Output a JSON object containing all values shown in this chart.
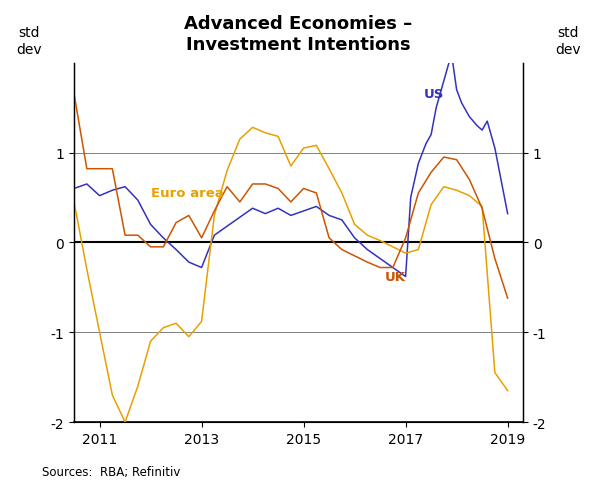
{
  "title": "Advanced Economies –\nInvestment Intentions",
  "ylabel_left": "std\ndev",
  "ylabel_right": "std\ndev",
  "source": "Sources:  RBA; Refinitiv",
  "ylim": [
    -2,
    2
  ],
  "yticks": [
    -2,
    -1,
    0,
    1
  ],
  "xlim": [
    2010.5,
    2019.3
  ],
  "xticks": [
    2011,
    2013,
    2015,
    2017,
    2019
  ],
  "colors": {
    "US": "#3333bb",
    "Euro_area": "#e8a000",
    "UK": "#cc5500"
  },
  "US": {
    "x": [
      2010.5,
      2010.75,
      2011.0,
      2011.25,
      2011.5,
      2011.75,
      2012.0,
      2012.25,
      2012.5,
      2012.75,
      2013.0,
      2013.25,
      2013.5,
      2013.75,
      2014.0,
      2014.25,
      2014.5,
      2014.75,
      2015.0,
      2015.25,
      2015.5,
      2015.75,
      2016.0,
      2016.25,
      2016.5,
      2016.75,
      2017.0,
      2017.1,
      2017.25,
      2017.4,
      2017.5,
      2017.6,
      2017.75,
      2017.9,
      2018.0,
      2018.1,
      2018.25,
      2018.4,
      2018.5,
      2018.6,
      2018.75,
      2019.0
    ],
    "y": [
      0.6,
      0.65,
      0.52,
      0.58,
      0.62,
      0.47,
      0.2,
      0.05,
      -0.08,
      -0.22,
      -0.28,
      0.08,
      0.18,
      0.28,
      0.38,
      0.32,
      0.38,
      0.3,
      0.35,
      0.4,
      0.3,
      0.25,
      0.05,
      -0.08,
      -0.18,
      -0.28,
      -0.38,
      0.5,
      0.88,
      1.1,
      1.2,
      1.5,
      1.8,
      2.1,
      1.7,
      1.55,
      1.4,
      1.3,
      1.25,
      1.35,
      1.05,
      0.32
    ]
  },
  "Euro_area": {
    "x": [
      2010.5,
      2010.75,
      2011.0,
      2011.25,
      2011.5,
      2011.75,
      2012.0,
      2012.25,
      2012.5,
      2012.75,
      2013.0,
      2013.25,
      2013.5,
      2013.75,
      2014.0,
      2014.25,
      2014.5,
      2014.75,
      2015.0,
      2015.25,
      2015.5,
      2015.75,
      2016.0,
      2016.25,
      2016.5,
      2016.75,
      2017.0,
      2017.25,
      2017.5,
      2017.75,
      2018.0,
      2018.25,
      2018.5,
      2018.75,
      2019.0
    ],
    "y": [
      0.45,
      -0.3,
      -1.0,
      -1.7,
      -2.0,
      -1.6,
      -1.1,
      -0.95,
      -0.9,
      -1.05,
      -0.88,
      0.3,
      0.8,
      1.15,
      1.28,
      1.22,
      1.18,
      0.85,
      1.05,
      1.08,
      0.82,
      0.55,
      0.2,
      0.08,
      0.02,
      -0.05,
      -0.12,
      -0.08,
      0.42,
      0.62,
      0.58,
      0.52,
      0.4,
      -1.45,
      -1.65
    ]
  },
  "UK": {
    "x": [
      2010.5,
      2010.75,
      2011.0,
      2011.25,
      2011.5,
      2011.75,
      2012.0,
      2012.25,
      2012.5,
      2012.75,
      2013.0,
      2013.25,
      2013.5,
      2013.75,
      2014.0,
      2014.25,
      2014.5,
      2014.75,
      2015.0,
      2015.25,
      2015.5,
      2015.75,
      2016.0,
      2016.25,
      2016.5,
      2016.75,
      2017.0,
      2017.25,
      2017.5,
      2017.75,
      2018.0,
      2018.25,
      2018.5,
      2018.75,
      2019.0
    ],
    "y": [
      1.65,
      0.82,
      0.82,
      0.82,
      0.08,
      0.08,
      -0.05,
      -0.05,
      0.22,
      0.3,
      0.05,
      0.35,
      0.62,
      0.45,
      0.65,
      0.65,
      0.6,
      0.45,
      0.6,
      0.55,
      0.05,
      -0.08,
      -0.15,
      -0.22,
      -0.28,
      -0.28,
      0.05,
      0.55,
      0.78,
      0.95,
      0.92,
      0.7,
      0.38,
      -0.18,
      -0.62
    ]
  }
}
